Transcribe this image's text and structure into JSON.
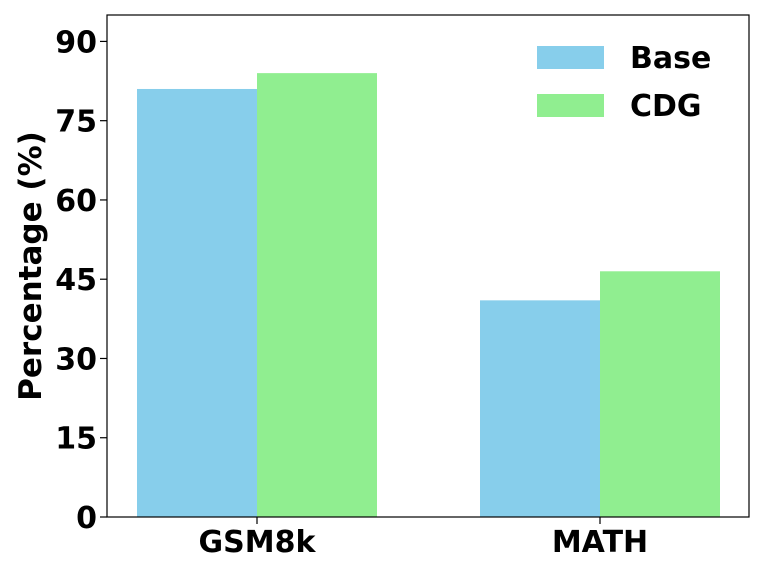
{
  "chart_data": {
    "type": "bar",
    "categories": [
      "GSM8k",
      "MATH"
    ],
    "series": [
      {
        "name": "Base",
        "values": [
          81.0,
          41.0
        ],
        "color": "#87CEEB"
      },
      {
        "name": "CDG",
        "values": [
          84.0,
          46.5
        ],
        "color": "#90EE90"
      }
    ],
    "title": "",
    "xlabel": "",
    "ylabel": "Percentage (%)",
    "ylim": [
      0,
      95
    ],
    "yticks": [
      "0",
      "15",
      "30",
      "45",
      "60",
      "75",
      "90"
    ],
    "grid": false,
    "legend_position": "top-right"
  }
}
